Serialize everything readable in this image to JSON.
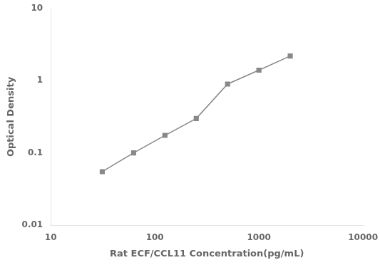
{
  "chart_data": {
    "type": "line",
    "x": [
      31.25,
      62.5,
      125,
      250,
      500,
      1000,
      2000
    ],
    "values": [
      0.055,
      0.1,
      0.175,
      0.3,
      0.9,
      1.4,
      2.2
    ],
    "xlabel": "Rat ECF/CCL11 Concentration(pg/mL)",
    "ylabel": "Optical Density",
    "xlim": [
      10,
      10000
    ],
    "ylim": [
      0.01,
      10
    ],
    "xticks": [
      10,
      100,
      1000,
      10000
    ],
    "yticks": [
      0.01,
      0.1,
      1,
      10
    ],
    "log": true,
    "grid": false,
    "color": "#888888",
    "marker": "square",
    "line_style": "solid"
  }
}
